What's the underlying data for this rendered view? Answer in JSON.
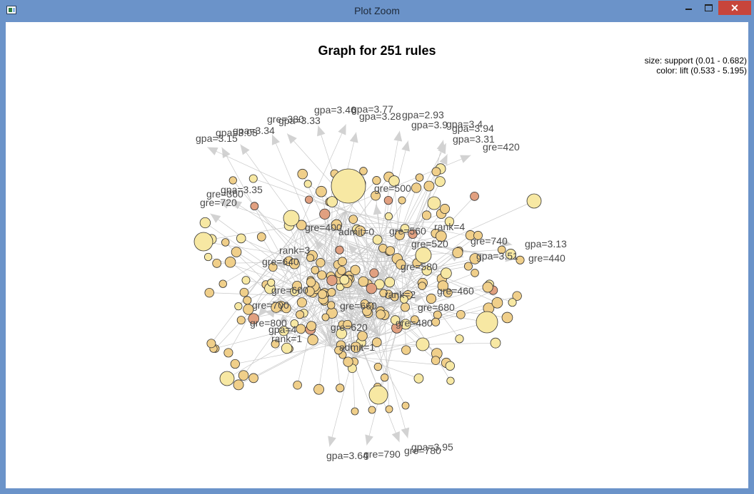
{
  "window": {
    "title": "Plot Zoom",
    "close_glyph": "✕"
  },
  "plot": {
    "title": "Graph for 251 rules"
  },
  "legend": {
    "size": "size: support (0.01 - 0.682)",
    "color": "color: lift (0.533 - 5.195)"
  },
  "node_labels": [
    "gpa=3.46",
    "gpa=3.77",
    "gpa=2.93",
    "gre=380",
    "gpa=3.33",
    "gpa=3.28",
    "gpa=3.9",
    "gpa=3.4",
    "gpa=3.94",
    "gpa=3.34",
    "gpa=3.31",
    "gpa=3.08",
    "gpa=3.15",
    "gre=420",
    "gre=500",
    "gpa=3.35",
    "gre=360",
    "gre=720",
    "gre=400",
    "admit=0",
    "gre=560",
    "rank=4",
    "gre=520",
    "gre=740",
    "gpa=3.13",
    "gpa=3.51",
    "gre=440",
    "rank=3",
    "gre=640",
    "gre=580",
    "gre=600",
    "gre=460",
    "rank=2",
    "gre=700",
    "gre=660",
    "gre=680",
    "gre=800",
    "gre=480",
    "gpa=4",
    "gre=620",
    "rank=1",
    "admit=1",
    "gpa=3.64",
    "gre=790",
    "gre=780",
    "gpa=3.95"
  ],
  "colors": {
    "titlebar": "#6b93c9",
    "close": "#c7453b",
    "node_light": "#f7e8a3",
    "node_mid": "#f0cf8a",
    "node_dark": "#e1a080",
    "edge": "#c8c8c8"
  }
}
